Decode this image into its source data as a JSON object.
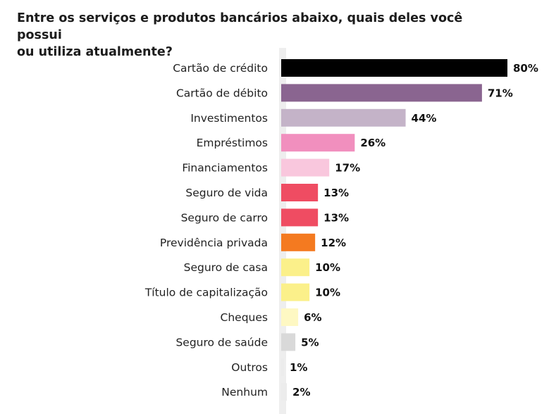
{
  "chart_data": {
    "type": "bar",
    "orientation": "horizontal",
    "title_lines": [
      "Entre os serviços e produtos bancários abaixo, quais deles você possui",
      "ou utiliza atualmente?"
    ],
    "categories": [
      "Cartão de crédito",
      "Cartão de débito",
      "Investimentos",
      "Empréstimos",
      "Financiamentos",
      "Seguro de vida",
      "Seguro de carro",
      "Previdência privada",
      "Seguro de casa",
      "Título de capitalização",
      "Cheques",
      "Seguro de saúde",
      "Outros",
      "Nenhum"
    ],
    "values": [
      80,
      71,
      44,
      26,
      17,
      13,
      13,
      12,
      10,
      10,
      6,
      5,
      1,
      2
    ],
    "value_labels": [
      "80%",
      "71%",
      "44%",
      "26%",
      "17%",
      "13%",
      "13%",
      "12%",
      "10%",
      "10%",
      "6%",
      "5%",
      "1%",
      "2%"
    ],
    "colors": [
      "#000000",
      "#8a6590",
      "#c4b3c8",
      "#f18fbe",
      "#f9c7dd",
      "#ef4c62",
      "#ef4c62",
      "#f47a20",
      "#fbf08a",
      "#fbf08a",
      "#fef8c3",
      "#d9d9d9",
      "#ececec",
      "#ececec"
    ],
    "xlim": [
      0,
      80
    ],
    "grid": false,
    "legend": "none"
  }
}
